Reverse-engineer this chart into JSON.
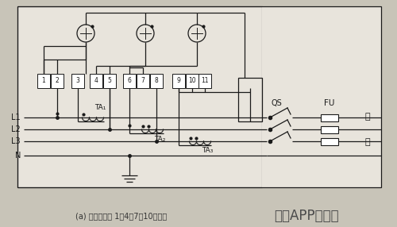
{
  "bg_color": "#c8c4b8",
  "inner_bg": "#e8e4dc",
  "line_color": "#1a1a1a",
  "title_text": "(a) 电压线圈为 1、4、7、10接线端",
  "watermark": "远方APP手游网",
  "labels_left": [
    "L1",
    "L2",
    "L3",
    "N"
  ],
  "terminal_labels": [
    "1",
    "2",
    "3",
    "4",
    "5",
    "6",
    "7",
    "8",
    "9",
    "10",
    "11"
  ],
  "qs_label": "QS",
  "fu_label": "FU",
  "fu_right1": "负",
  "fu_right2": "荷"
}
